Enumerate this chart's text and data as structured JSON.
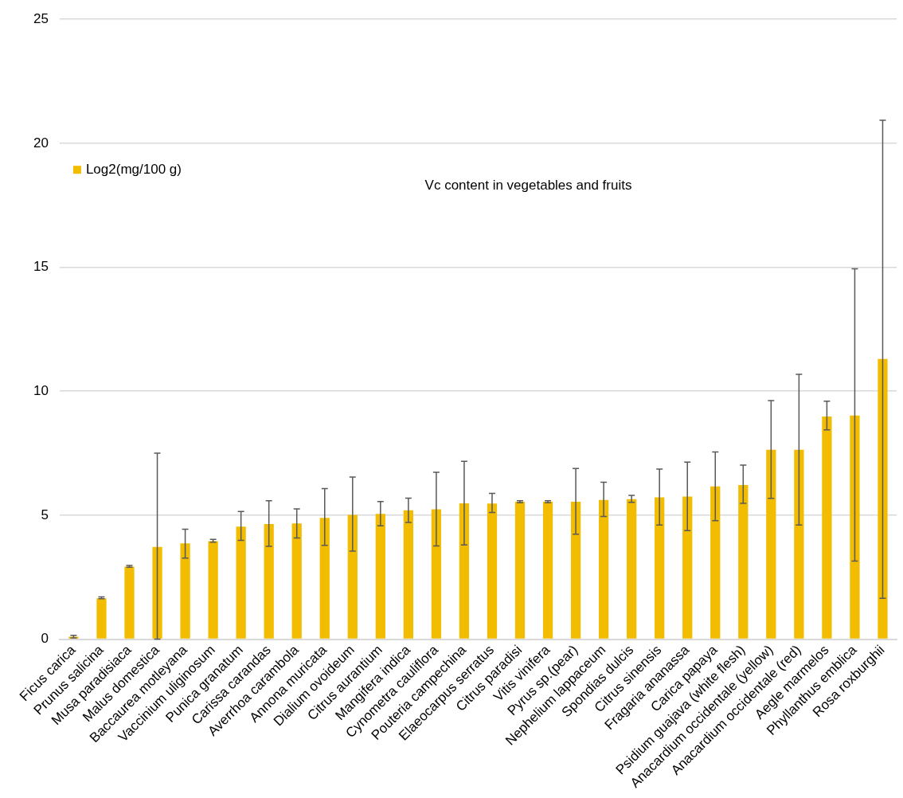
{
  "chart_data": {
    "type": "bar",
    "title": "Vc content in vegetables and fruits",
    "categories": [
      "Ficus carica",
      "Prunus salicina",
      "Musa paradisiaca",
      "Malus domestica",
      "Baccaurea motleyana",
      "Vaccinium uliginosum",
      "Punica granatum",
      "Carissa carandas",
      "Averrhoa carambola",
      "Annona muricata",
      "Dialium ovoideum",
      "Citrus aurantium",
      "Mangifera indica",
      "Cynometra cauliflora",
      "Pouteria campechina",
      "Elaeocarpus serratus",
      "Citrus paradisi",
      "Vitis vinifera",
      "Pyrus sp.(pear)",
      "Nephelium lappaceum",
      "Spondias dulcis",
      "Citrus sinensis",
      "Fragaria ananassa",
      "Carica papaya",
      "Psidium guajava (white flesh)",
      "Anacardium occidentale (yellow)",
      "Anacardium occidentale (red)",
      "Aegle marmelos",
      "Phyllanthus emblica",
      "Rosa roxburghii"
    ],
    "series": [
      {
        "name": "Log2(mg/100 g)",
        "color": "#f2bc00",
        "values": [
          0.1,
          1.65,
          2.92,
          3.72,
          3.86,
          3.95,
          4.54,
          4.64,
          4.67,
          4.89,
          5.01,
          5.05,
          5.2,
          5.24,
          5.48,
          5.47,
          5.54,
          5.54,
          5.54,
          5.61,
          5.65,
          5.72,
          5.75,
          6.16,
          6.22,
          7.64,
          7.64,
          8.98,
          9.02,
          11.3
        ],
        "errors": [
          [
            0.05,
            0.15
          ],
          [
            1.63,
            1.7
          ],
          [
            2.9,
            2.97
          ],
          [
            0,
            7.5
          ],
          [
            3.27,
            4.43
          ],
          [
            3.91,
            4.02
          ],
          [
            3.98,
            5.15
          ],
          [
            3.74,
            5.58
          ],
          [
            4.08,
            5.25
          ],
          [
            3.78,
            6.07
          ],
          [
            3.55,
            6.54
          ],
          [
            4.57,
            5.55
          ],
          [
            4.71,
            5.69
          ],
          [
            3.76,
            6.73
          ],
          [
            3.8,
            7.17
          ],
          [
            5.11,
            5.88
          ],
          [
            5.5,
            5.58
          ],
          [
            5.5,
            5.58
          ],
          [
            4.23,
            6.88
          ],
          [
            4.95,
            6.33
          ],
          [
            5.52,
            5.8
          ],
          [
            4.6,
            6.86
          ],
          [
            4.38,
            7.14
          ],
          [
            4.78,
            7.55
          ],
          [
            5.48,
            7.02
          ],
          [
            5.68,
            9.62
          ],
          [
            4.6,
            10.68
          ],
          [
            8.44,
            9.6
          ],
          [
            3.15,
            14.94
          ],
          [
            1.65,
            20.93
          ]
        ]
      }
    ],
    "ylim": [
      0,
      25
    ],
    "yticks": [
      0,
      5,
      10,
      15,
      20,
      25
    ],
    "grid": "y",
    "legend": "top left"
  }
}
